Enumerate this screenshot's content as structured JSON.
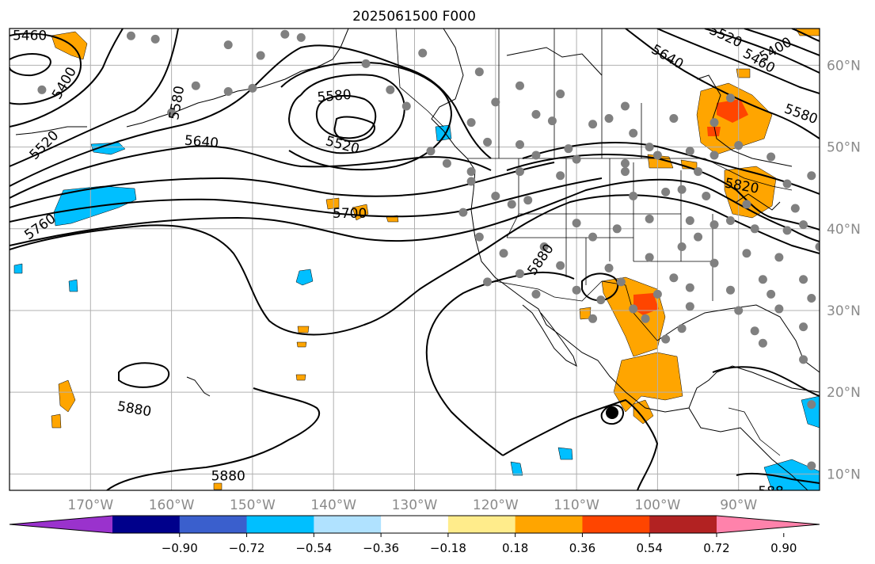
{
  "title": "2025061500 F000",
  "map": {
    "lon_ticks": [
      {
        "lon": -170,
        "label": "170°W"
      },
      {
        "lon": -160,
        "label": "160°W"
      },
      {
        "lon": -150,
        "label": "150°W"
      },
      {
        "lon": -140,
        "label": "140°W"
      },
      {
        "lon": -130,
        "label": "130°W"
      },
      {
        "lon": -120,
        "label": "120°W"
      },
      {
        "lon": -110,
        "label": "110°W"
      },
      {
        "lon": -100,
        "label": "100°W"
      },
      {
        "lon": -90,
        "label": "90°W"
      }
    ],
    "lat_ticks": [
      {
        "lat": 60,
        "label": "60°N"
      },
      {
        "lat": 50,
        "label": "50°N"
      },
      {
        "lat": 40,
        "label": "40°N"
      },
      {
        "lat": 30,
        "label": "30°N"
      },
      {
        "lat": 20,
        "label": "20°N"
      },
      {
        "lat": 10,
        "label": "10°N"
      }
    ],
    "lon_range": [
      -180,
      -80
    ],
    "lat_range": [
      8,
      64.5
    ],
    "grid": true,
    "colors": {
      "land_outline": "#000000",
      "gridline": "#b0b0b0",
      "station": "#808080"
    },
    "contour_labels": [
      {
        "text": "5460",
        "lon": -177.5,
        "lat": 63.6,
        "angle": 0
      },
      {
        "text": "5400",
        "lon": -173.2,
        "lat": 57.8,
        "angle": -60
      },
      {
        "text": "5580",
        "lon": -159.3,
        "lat": 55.4,
        "angle": -80
      },
      {
        "text": "5520",
        "lon": -175.7,
        "lat": 50.2,
        "angle": -45
      },
      {
        "text": "5640",
        "lon": -156.3,
        "lat": 50.6,
        "angle": 5
      },
      {
        "text": "5580",
        "lon": -139.9,
        "lat": 56.2,
        "angle": -5
      },
      {
        "text": "5520",
        "lon": -138.9,
        "lat": 50.2,
        "angle": 15
      },
      {
        "text": "5700",
        "lon": -138.0,
        "lat": 41.8,
        "angle": 0
      },
      {
        "text": "5760",
        "lon": -176.2,
        "lat": 40.2,
        "angle": -35
      },
      {
        "text": "5880",
        "lon": -114.4,
        "lat": 36.2,
        "angle": -55
      },
      {
        "text": "5640",
        "lon": -98.8,
        "lat": 61.0,
        "angle": 30
      },
      {
        "text": "5520",
        "lon": -91.6,
        "lat": 63.5,
        "angle": 25
      },
      {
        "text": "5400",
        "lon": -85.4,
        "lat": 61.9,
        "angle": -30
      },
      {
        "text": "5460",
        "lon": -87.5,
        "lat": 60.5,
        "angle": 30
      },
      {
        "text": "5580",
        "lon": -82.3,
        "lat": 54.0,
        "angle": 20
      },
      {
        "text": "5820",
        "lon": -89.6,
        "lat": 45.2,
        "angle": 10
      },
      {
        "text": "5880",
        "lon": -164.6,
        "lat": 17.9,
        "angle": 10
      },
      {
        "text": "5880",
        "lon": -153.0,
        "lat": 9.7,
        "angle": 0
      },
      {
        "text": "588",
        "lon": -86.0,
        "lat": 7.8,
        "angle": 0
      }
    ]
  },
  "colorbar": {
    "ticks": [
      "−0.90",
      "−0.72",
      "−0.54",
      "−0.36",
      "−0.18",
      "0.18",
      "0.36",
      "0.54",
      "0.72",
      "0.90"
    ],
    "colors": [
      "#9a32cd",
      "#00008b",
      "#3a5fcd",
      "#00bfff",
      "#b0e2ff",
      "#ffffff",
      "#ffec8b",
      "#ffa500",
      "#ff4500",
      "#b22222",
      "#ff82ab"
    ]
  }
}
